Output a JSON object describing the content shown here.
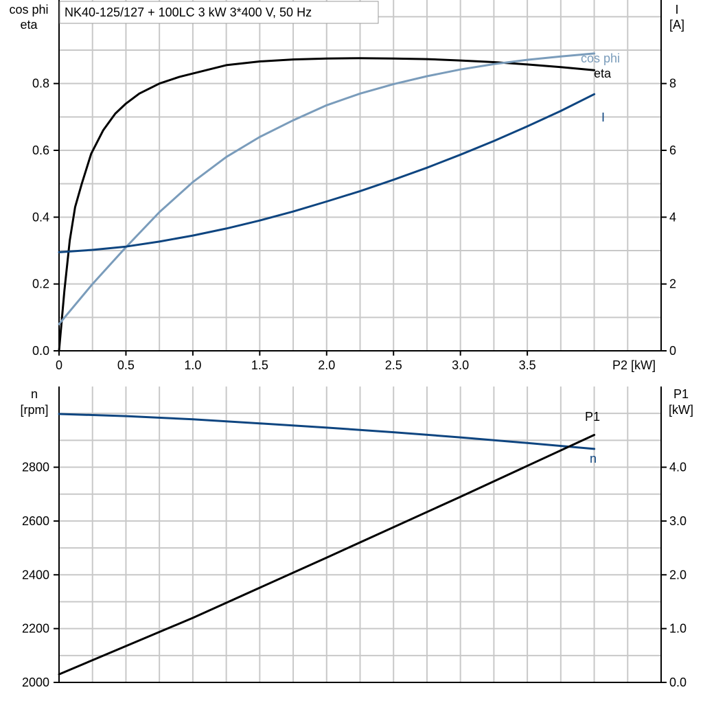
{
  "chart_data": [
    {
      "type": "line",
      "title": "NK40-125/127 + 100LC   3 kW   3*400 V, 50 Hz",
      "xlabel": "P2 [kW]",
      "x_ticks": [
        "0",
        "0.5",
        "1.0",
        "1.5",
        "2.0",
        "2.5",
        "3.0",
        "3.5"
      ],
      "xlim": [
        0,
        4.5
      ],
      "left_axis": {
        "label_line1": "cos phi",
        "label_line2": "eta",
        "ylim": [
          0,
          1.05
        ],
        "ticks": [
          "0.0",
          "0.2",
          "0.4",
          "0.6",
          "0.8"
        ]
      },
      "right_axis": {
        "label_line1": "I",
        "label_line2": "[A]",
        "ylim": [
          0,
          10.5
        ],
        "ticks": [
          "0",
          "2",
          "4",
          "6",
          "8"
        ]
      },
      "grid": true,
      "series": [
        {
          "name": "eta",
          "axis": "left",
          "color": "#000000",
          "x": [
            0,
            0.04,
            0.08,
            0.12,
            0.17,
            0.24,
            0.33,
            0.42,
            0.5,
            0.6,
            0.75,
            0.9,
            1.0,
            1.25,
            1.5,
            1.75,
            2.0,
            2.25,
            2.5,
            2.75,
            3.0,
            3.25,
            3.5,
            3.75,
            4.0
          ],
          "values": [
            0.0,
            0.18,
            0.33,
            0.43,
            0.5,
            0.59,
            0.66,
            0.71,
            0.74,
            0.77,
            0.8,
            0.82,
            0.83,
            0.855,
            0.866,
            0.872,
            0.875,
            0.876,
            0.875,
            0.873,
            0.869,
            0.864,
            0.857,
            0.849,
            0.84
          ]
        },
        {
          "name": "cos phi",
          "axis": "left",
          "color": "#7a9cbb",
          "x": [
            0,
            0.25,
            0.5,
            0.75,
            1.0,
            1.25,
            1.5,
            1.75,
            2.0,
            2.25,
            2.5,
            2.75,
            3.0,
            3.25,
            3.5,
            3.75,
            4.0
          ],
          "values": [
            0.08,
            0.2,
            0.31,
            0.415,
            0.505,
            0.58,
            0.64,
            0.69,
            0.735,
            0.77,
            0.798,
            0.822,
            0.842,
            0.858,
            0.871,
            0.881,
            0.89
          ]
        },
        {
          "name": "I",
          "axis": "right",
          "color": "#0e4580",
          "x": [
            0,
            0.25,
            0.5,
            0.75,
            1.0,
            1.25,
            1.5,
            1.75,
            2.0,
            2.25,
            2.5,
            2.75,
            3.0,
            3.25,
            3.5,
            3.75,
            4.0
          ],
          "values": [
            2.95,
            3.02,
            3.12,
            3.27,
            3.45,
            3.66,
            3.9,
            4.17,
            4.47,
            4.78,
            5.12,
            5.48,
            5.87,
            6.28,
            6.72,
            7.18,
            7.68
          ]
        }
      ]
    },
    {
      "type": "line",
      "xlim": [
        0,
        4.5
      ],
      "left_axis": {
        "label_line1": "n",
        "label_line2": "[rpm]",
        "ylim": [
          2000,
          3100
        ],
        "ticks": [
          "2000",
          "2200",
          "2400",
          "2600",
          "2800"
        ]
      },
      "right_axis": {
        "label_line1": "P1",
        "label_line2": "[kW]",
        "ylim": [
          0,
          5.5
        ],
        "ticks": [
          "0.0",
          "1.0",
          "2.0",
          "3.0",
          "4.0"
        ]
      },
      "grid": true,
      "series": [
        {
          "name": "n",
          "axis": "left",
          "color": "#0e4580",
          "x": [
            0,
            0.5,
            1.0,
            1.5,
            2.0,
            2.5,
            3.0,
            3.5,
            4.0
          ],
          "values": [
            2998,
            2990,
            2978,
            2963,
            2947,
            2930,
            2911,
            2890,
            2868
          ]
        },
        {
          "name": "P1",
          "axis": "right",
          "color": "#000000",
          "x": [
            0,
            1.0,
            2.0,
            3.0,
            4.0
          ],
          "values": [
            0.15,
            1.2,
            2.32,
            3.45,
            4.6
          ]
        }
      ]
    }
  ]
}
